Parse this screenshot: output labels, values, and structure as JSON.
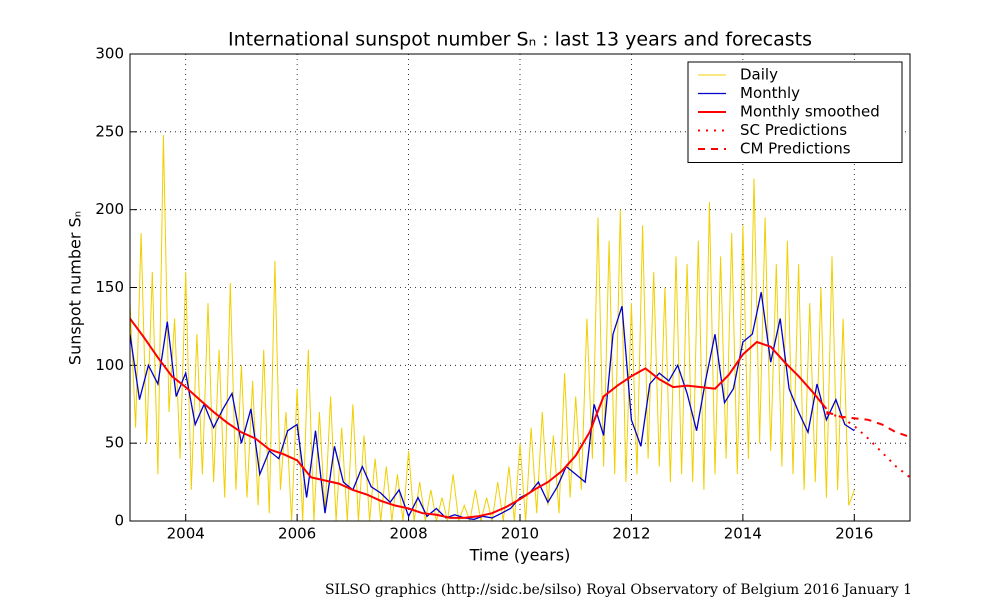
{
  "chart_data": {
    "type": "line",
    "title": "International sunspot number Sₙ : last 13 years and forecasts",
    "x_label": "Time (years)",
    "y_label": "Sunspot number Sₙ",
    "footer": "SILSO graphics (http://sidc.be/silso)  Royal Observatory of Belgium  2016 January 1",
    "xlim": [
      2003,
      2017
    ],
    "ylim": [
      0,
      300
    ],
    "xticks": [
      2004,
      2006,
      2008,
      2010,
      2012,
      2014,
      2016
    ],
    "yticks": [
      0,
      50,
      100,
      150,
      200,
      250,
      300
    ],
    "grid": true,
    "legend": "upper right",
    "series": [
      {
        "name": "Daily",
        "color": "#f0d000",
        "linestyle": "solid",
        "x": [
          2003,
          2003.1,
          2003.2,
          2003.3,
          2003.4,
          2003.5,
          2003.6,
          2003.7,
          2003.8,
          2003.9,
          2004,
          2004.1,
          2004.2,
          2004.3,
          2004.4,
          2004.5,
          2004.6,
          2004.7,
          2004.8,
          2004.9,
          2005,
          2005.1,
          2005.2,
          2005.3,
          2005.4,
          2005.5,
          2005.6,
          2005.7,
          2005.8,
          2005.9,
          2006,
          2006.1,
          2006.2,
          2006.3,
          2006.4,
          2006.5,
          2006.6,
          2006.7,
          2006.8,
          2006.9,
          2007,
          2007.1,
          2007.2,
          2007.3,
          2007.4,
          2007.5,
          2007.6,
          2007.7,
          2007.8,
          2007.9,
          2008,
          2008.1,
          2008.2,
          2008.3,
          2008.4,
          2008.5,
          2008.6,
          2008.7,
          2008.8,
          2008.9,
          2009,
          2009.1,
          2009.2,
          2009.3,
          2009.4,
          2009.5,
          2009.6,
          2009.7,
          2009.8,
          2009.9,
          2010,
          2010.1,
          2010.2,
          2010.3,
          2010.4,
          2010.5,
          2010.6,
          2010.7,
          2010.8,
          2010.9,
          2011,
          2011.1,
          2011.2,
          2011.3,
          2011.4,
          2011.5,
          2011.6,
          2011.7,
          2011.8,
          2011.9,
          2012,
          2012.1,
          2012.2,
          2012.3,
          2012.4,
          2012.5,
          2012.6,
          2012.7,
          2012.8,
          2012.9,
          2013,
          2013.1,
          2013.2,
          2013.3,
          2013.4,
          2013.5,
          2013.6,
          2013.7,
          2013.8,
          2013.9,
          2014,
          2014.1,
          2014.2,
          2014.3,
          2014.4,
          2014.5,
          2014.6,
          2014.7,
          2014.8,
          2014.9,
          2015,
          2015.1,
          2015.2,
          2015.3,
          2015.4,
          2015.5,
          2015.6,
          2015.7,
          2015.8,
          2015.9,
          2016
        ],
        "values": [
          140,
          60,
          185,
          50,
          160,
          30,
          248,
          70,
          130,
          40,
          160,
          20,
          120,
          30,
          140,
          25,
          110,
          15,
          153,
          20,
          100,
          15,
          90,
          10,
          110,
          5,
          167,
          20,
          70,
          0,
          85,
          0,
          110,
          0,
          70,
          5,
          80,
          0,
          60,
          0,
          75,
          0,
          55,
          0,
          40,
          0,
          35,
          0,
          30,
          0,
          45,
          0,
          25,
          0,
          20,
          0,
          15,
          0,
          30,
          0,
          10,
          0,
          20,
          0,
          15,
          0,
          25,
          0,
          35,
          0,
          50,
          0,
          60,
          5,
          70,
          10,
          55,
          5,
          95,
          15,
          80,
          20,
          130,
          40,
          195,
          35,
          180,
          30,
          200,
          25,
          140,
          30,
          190,
          40,
          160,
          35,
          150,
          25,
          170,
          30,
          165,
          25,
          180,
          20,
          205,
          30,
          170,
          40,
          185,
          30,
          190,
          40,
          220,
          50,
          195,
          45,
          165,
          35,
          180,
          30,
          165,
          20,
          140,
          25,
          150,
          15,
          170,
          20,
          130,
          10,
          20
        ]
      },
      {
        "name": "Monthly",
        "color": "#0000cc",
        "linestyle": "solid",
        "x": [
          2003,
          2003.17,
          2003.33,
          2003.5,
          2003.67,
          2003.83,
          2004,
          2004.17,
          2004.33,
          2004.5,
          2004.67,
          2004.83,
          2005,
          2005.17,
          2005.33,
          2005.5,
          2005.67,
          2005.83,
          2006,
          2006.17,
          2006.33,
          2006.5,
          2006.67,
          2006.83,
          2007,
          2007.17,
          2007.33,
          2007.5,
          2007.67,
          2007.83,
          2008,
          2008.17,
          2008.33,
          2008.5,
          2008.67,
          2008.83,
          2009,
          2009.17,
          2009.33,
          2009.5,
          2009.67,
          2009.83,
          2010,
          2010.17,
          2010.33,
          2010.5,
          2010.67,
          2010.83,
          2011,
          2011.17,
          2011.33,
          2011.5,
          2011.67,
          2011.83,
          2012,
          2012.17,
          2012.33,
          2012.5,
          2012.67,
          2012.83,
          2013,
          2013.17,
          2013.33,
          2013.5,
          2013.67,
          2013.83,
          2014,
          2014.17,
          2014.33,
          2014.5,
          2014.67,
          2014.83,
          2015,
          2015.17,
          2015.33,
          2015.5,
          2015.67,
          2015.83,
          2016
        ],
        "values": [
          120,
          78,
          100,
          88,
          128,
          80,
          95,
          62,
          75,
          60,
          72,
          82,
          50,
          72,
          30,
          45,
          40,
          58,
          62,
          15,
          58,
          5,
          48,
          25,
          20,
          35,
          22,
          18,
          12,
          20,
          3,
          15,
          3,
          8,
          2,
          4,
          2,
          1,
          3,
          2,
          5,
          8,
          15,
          18,
          25,
          12,
          22,
          35,
          30,
          25,
          75,
          55,
          120,
          138,
          65,
          48,
          88,
          95,
          90,
          100,
          82,
          58,
          90,
          120,
          76,
          85,
          115,
          120,
          147,
          102,
          130,
          85,
          70,
          57,
          88,
          65,
          78,
          62,
          58
        ]
      },
      {
        "name": "Monthly smoothed",
        "color": "#ff0000",
        "linestyle": "solid",
        "x": [
          2003,
          2003.25,
          2003.5,
          2003.75,
          2004,
          2004.25,
          2004.5,
          2004.75,
          2005,
          2005.25,
          2005.5,
          2005.75,
          2006,
          2006.25,
          2006.5,
          2006.75,
          2007,
          2007.25,
          2007.5,
          2007.75,
          2008,
          2008.25,
          2008.5,
          2008.75,
          2009,
          2009.25,
          2009.5,
          2009.75,
          2010,
          2010.25,
          2010.5,
          2010.75,
          2011,
          2011.25,
          2011.5,
          2011.75,
          2012,
          2012.25,
          2012.5,
          2012.75,
          2013,
          2013.25,
          2013.5,
          2013.75,
          2014,
          2014.25,
          2014.5,
          2014.75,
          2015,
          2015.25,
          2015.5
        ],
        "values": [
          130,
          118,
          105,
          93,
          86,
          78,
          70,
          63,
          57,
          53,
          46,
          43,
          39,
          28,
          26,
          24,
          20,
          17,
          13,
          10,
          8,
          5,
          4,
          2,
          2,
          3,
          5,
          9,
          14,
          20,
          25,
          32,
          42,
          57,
          80,
          87,
          93,
          98,
          91,
          86,
          87,
          86,
          85,
          94,
          107,
          115,
          112,
          102,
          93,
          83,
          72
        ]
      },
      {
        "name": "SC Predictions",
        "color": "#ff0000",
        "linestyle": "dotted",
        "x": [
          2015.5,
          2015.75,
          2016,
          2016.25,
          2016.5,
          2016.75,
          2017
        ],
        "values": [
          69,
          67,
          61,
          53,
          44,
          35,
          28
        ]
      },
      {
        "name": "CM Predictions",
        "color": "#ff0000",
        "linestyle": "dashed",
        "x": [
          2015.5,
          2015.75,
          2016,
          2016.25,
          2016.5,
          2016.75,
          2017
        ],
        "values": [
          70,
          67,
          66,
          65,
          62,
          57,
          54
        ]
      }
    ]
  }
}
